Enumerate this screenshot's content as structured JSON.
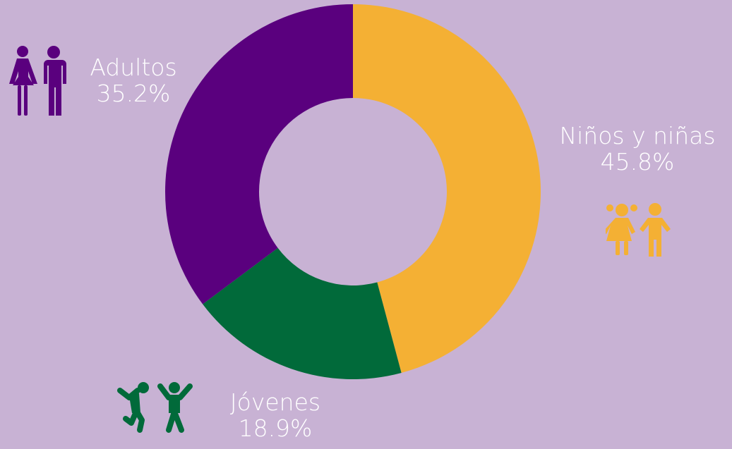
{
  "chart_data": {
    "type": "pie",
    "variant": "donut",
    "title": "",
    "slices": [
      {
        "label": "Niños y niñas",
        "value": 45.8,
        "value_label": "45.8%",
        "color": "#f4b034",
        "icon": "children-icon"
      },
      {
        "label": "Jóvenes",
        "value": 18.9,
        "value_label": "18.9%",
        "color": "#016a3a",
        "icon": "youth-jumping-icon"
      },
      {
        "label": "Adultos",
        "value": 35.2,
        "value_label": "35.2%",
        "color": "#5a007e",
        "icon": "adults-couple-icon"
      }
    ]
  },
  "background_color": "#c8b2d4",
  "label_color": "#ffffff"
}
